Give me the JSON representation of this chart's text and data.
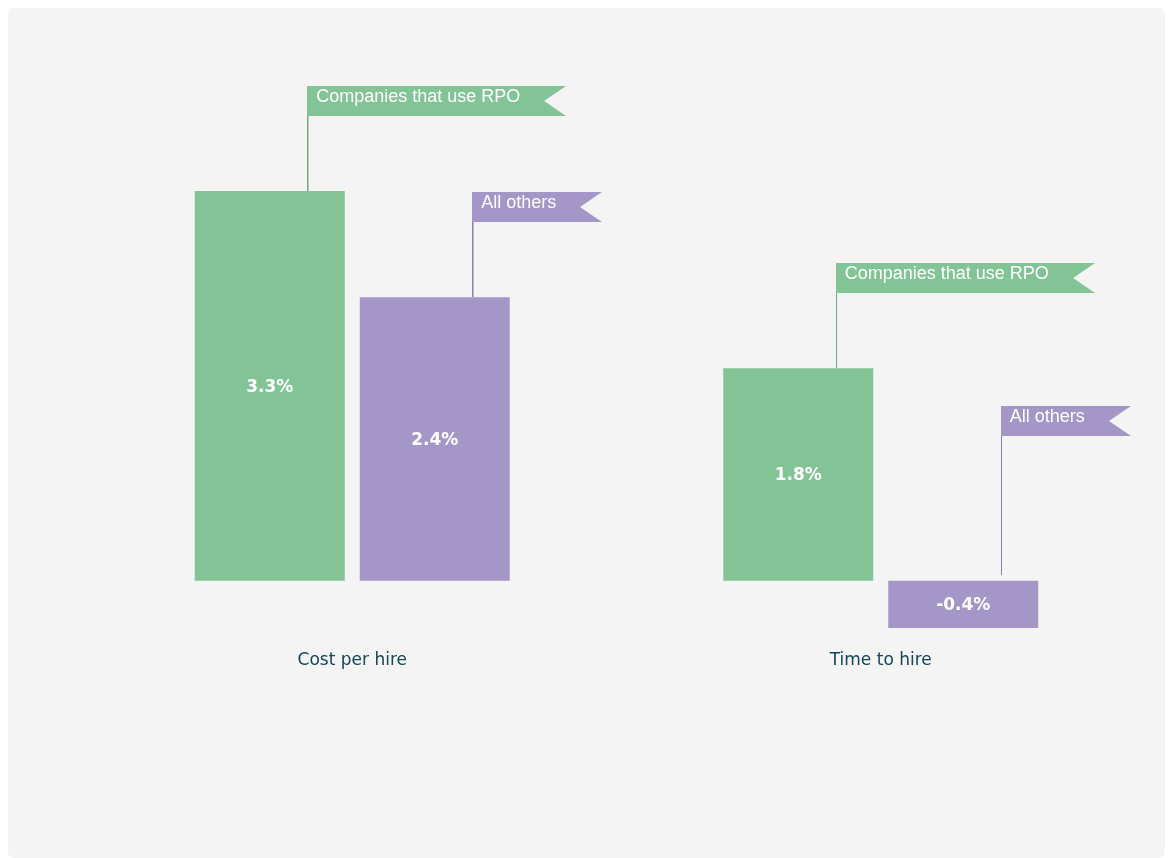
{
  "chart_data": {
    "type": "bar",
    "categories": [
      "Cost per hire",
      "Time to hire"
    ],
    "series": [
      {
        "name": "Companies that use RPO",
        "color": "#82c495",
        "values": [
          3.3,
          1.8
        ],
        "value_labels": [
          "3.3%",
          "1.8%"
        ]
      },
      {
        "name": "All others",
        "color": "#a596c8",
        "values": [
          2.4,
          -0.4
        ],
        "value_labels": [
          "2.4%",
          "-0.4%"
        ]
      }
    ],
    "tick_labels": "x"
  }
}
